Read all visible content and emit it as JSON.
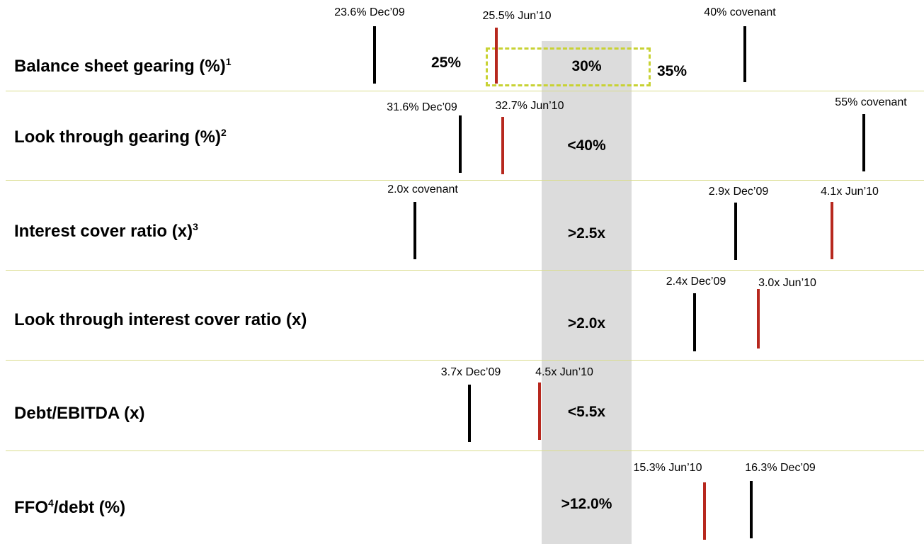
{
  "chart_data": {
    "type": "marker-scale",
    "colors": {
      "dec09": "#000000",
      "jun10": "#b7281e",
      "target_band": "#dcdcdc",
      "range_box": "#c8d234",
      "divider": "#d9dc8c"
    },
    "rows": [
      {
        "label": "Balance sheet gearing (%)",
        "sup": "1",
        "post": "",
        "target": "30%",
        "range": {
          "low": "25%",
          "mid": "30%",
          "high": "35%"
        },
        "markers": [
          {
            "text": "23.6% Dec’09",
            "value": 23.6,
            "period": "Dec’09",
            "color": "#000000"
          },
          {
            "text": "25.5% Jun’10",
            "value": 25.5,
            "period": "Jun’10",
            "color": "#b7281e"
          },
          {
            "text": "40% covenant",
            "value": 40,
            "period": "covenant",
            "color": "#000000"
          }
        ]
      },
      {
        "label": "Look through gearing (%)",
        "sup": "2",
        "post": "",
        "target": "<40%",
        "markers": [
          {
            "text": "31.6% Dec’09",
            "value": 31.6,
            "period": "Dec’09",
            "color": "#000000"
          },
          {
            "text": "32.7% Jun’10",
            "value": 32.7,
            "period": "Jun’10",
            "color": "#b7281e"
          },
          {
            "text": "55% covenant",
            "value": 55,
            "period": "covenant",
            "color": "#000000"
          }
        ]
      },
      {
        "label": "Interest cover ratio (x)",
        "sup": "3",
        "post": "",
        "target": ">2.5x",
        "markers": [
          {
            "text": "2.0x covenant",
            "value": 2.0,
            "period": "covenant",
            "color": "#000000"
          },
          {
            "text": "2.9x Dec’09",
            "value": 2.9,
            "period": "Dec’09",
            "color": "#000000"
          },
          {
            "text": "4.1x Jun’10",
            "value": 4.1,
            "period": "Jun’10",
            "color": "#b7281e"
          }
        ]
      },
      {
        "label": "Look through interest cover ratio (x)",
        "sup": "",
        "post": "",
        "target": ">2.0x",
        "markers": [
          {
            "text": "2.4x Dec’09",
            "value": 2.4,
            "period": "Dec’09",
            "color": "#000000"
          },
          {
            "text": "3.0x Jun’10",
            "value": 3.0,
            "period": "Jun’10",
            "color": "#b7281e"
          }
        ]
      },
      {
        "label": "Debt/EBITDA (x)",
        "sup": "",
        "post": "",
        "target": "<5.5x",
        "markers": [
          {
            "text": "3.7x Dec’09",
            "value": 3.7,
            "period": "Dec’09",
            "color": "#000000"
          },
          {
            "text": "4.5x Jun’10",
            "value": 4.5,
            "period": "Jun’10",
            "color": "#b7281e"
          }
        ]
      },
      {
        "label": "FFO",
        "sup": "4",
        "post": "/debt (%)",
        "target": ">12.0%",
        "markers": [
          {
            "text": "15.3% Jun’10",
            "value": 15.3,
            "period": "Jun’10",
            "color": "#b7281e"
          },
          {
            "text": "16.3% Dec’09",
            "value": 16.3,
            "period": "Dec’09",
            "color": "#000000"
          }
        ]
      }
    ]
  }
}
